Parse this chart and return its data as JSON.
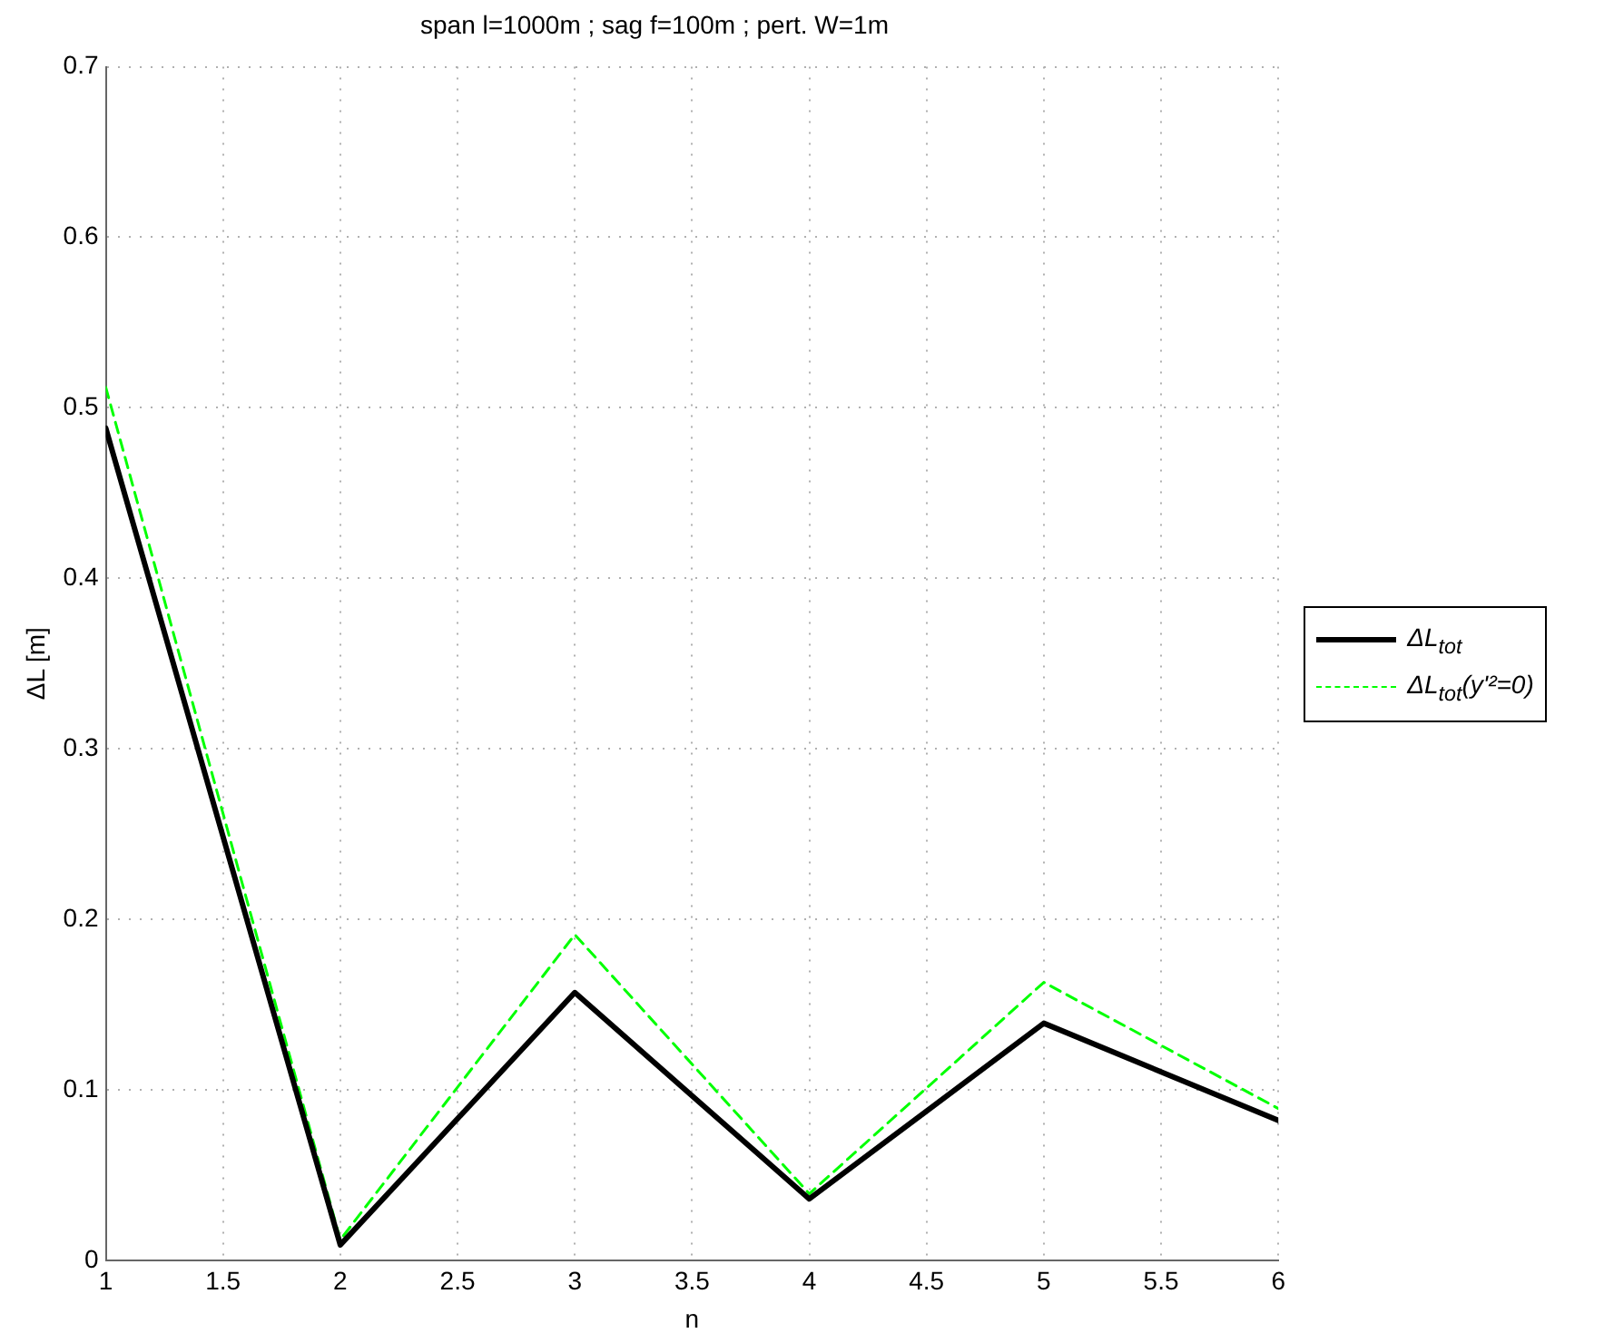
{
  "chart_data": {
    "type": "line",
    "title": "span l=1000m ; sag f=100m ; pert. W=1m",
    "xlabel": "n",
    "ylabel": "ΔL [m]",
    "x": [
      1,
      2,
      3,
      4,
      5,
      6
    ],
    "series": [
      {
        "name": "ΔL$_{tot}$",
        "color": "#000000",
        "line_style": "solid",
        "values": [
          0.488,
          0.009,
          0.157,
          0.036,
          0.139,
          0.082
        ]
      },
      {
        "name": "ΔL$_{tot}$(y'²=0)",
        "color": "#00ff00",
        "line_style": "dashed",
        "values": [
          0.512,
          0.012,
          0.191,
          0.039,
          0.163,
          0.089
        ]
      }
    ],
    "xlim": [
      1,
      6
    ],
    "xticks": [
      1,
      1.5,
      2,
      2.5,
      3,
      3.5,
      4,
      4.5,
      5,
      5.5,
      6
    ],
    "ylim": [
      0,
      0.7
    ],
    "yticks": [
      0,
      0.1,
      0.2,
      0.3,
      0.4,
      0.5,
      0.6,
      0.7
    ],
    "grid": true,
    "legend": "right",
    "marker": "none"
  }
}
